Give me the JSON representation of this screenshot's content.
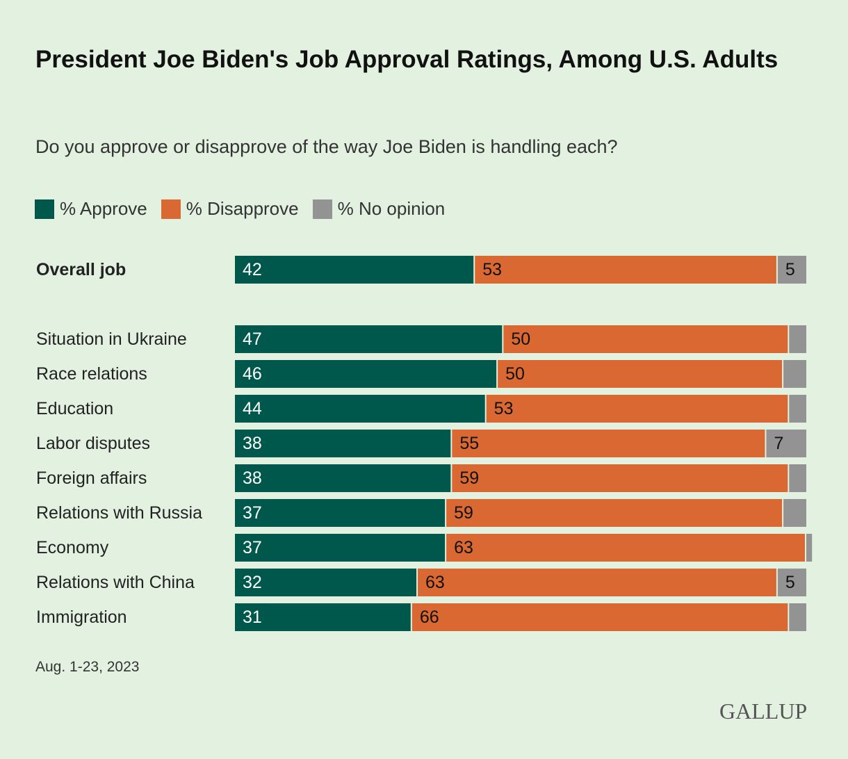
{
  "chart_data": {
    "type": "bar",
    "orientation": "horizontal-stacked",
    "title": "President Joe Biden's Job Approval Ratings, Among U.S. Adults",
    "subtitle": "Do you approve or disapprove of the way Joe Biden is handling each?",
    "legend": [
      {
        "label": "% Approve",
        "color": "#00584d"
      },
      {
        "label": "% Disapprove",
        "color": "#d96832"
      },
      {
        "label": "% No opinion",
        "color": "#939393"
      }
    ],
    "legend_position": "top-left",
    "categories": [
      "Overall job",
      "Situation in Ukraine",
      "Race relations",
      "Education",
      "Labor disputes",
      "Foreign affairs",
      "Relations with Russia",
      "Economy",
      "Relations with China",
      "Immigration"
    ],
    "series": [
      {
        "name": "% Approve",
        "values": [
          42,
          47,
          46,
          44,
          38,
          38,
          37,
          37,
          32,
          31
        ]
      },
      {
        "name": "% Disapprove",
        "values": [
          53,
          50,
          50,
          53,
          55,
          59,
          59,
          63,
          63,
          66
        ]
      },
      {
        "name": "% No opinion",
        "values": [
          5,
          3,
          4,
          3,
          7,
          3,
          4,
          1,
          5,
          3
        ]
      }
    ],
    "no_opinion_label_shown": [
      true,
      false,
      false,
      false,
      true,
      false,
      false,
      false,
      true,
      false
    ],
    "bold_categories": [
      "Overall job"
    ],
    "xlim": [
      0,
      100
    ],
    "grid": false
  },
  "footer": "Aug. 1-23, 2023",
  "logo": "GALLUP"
}
